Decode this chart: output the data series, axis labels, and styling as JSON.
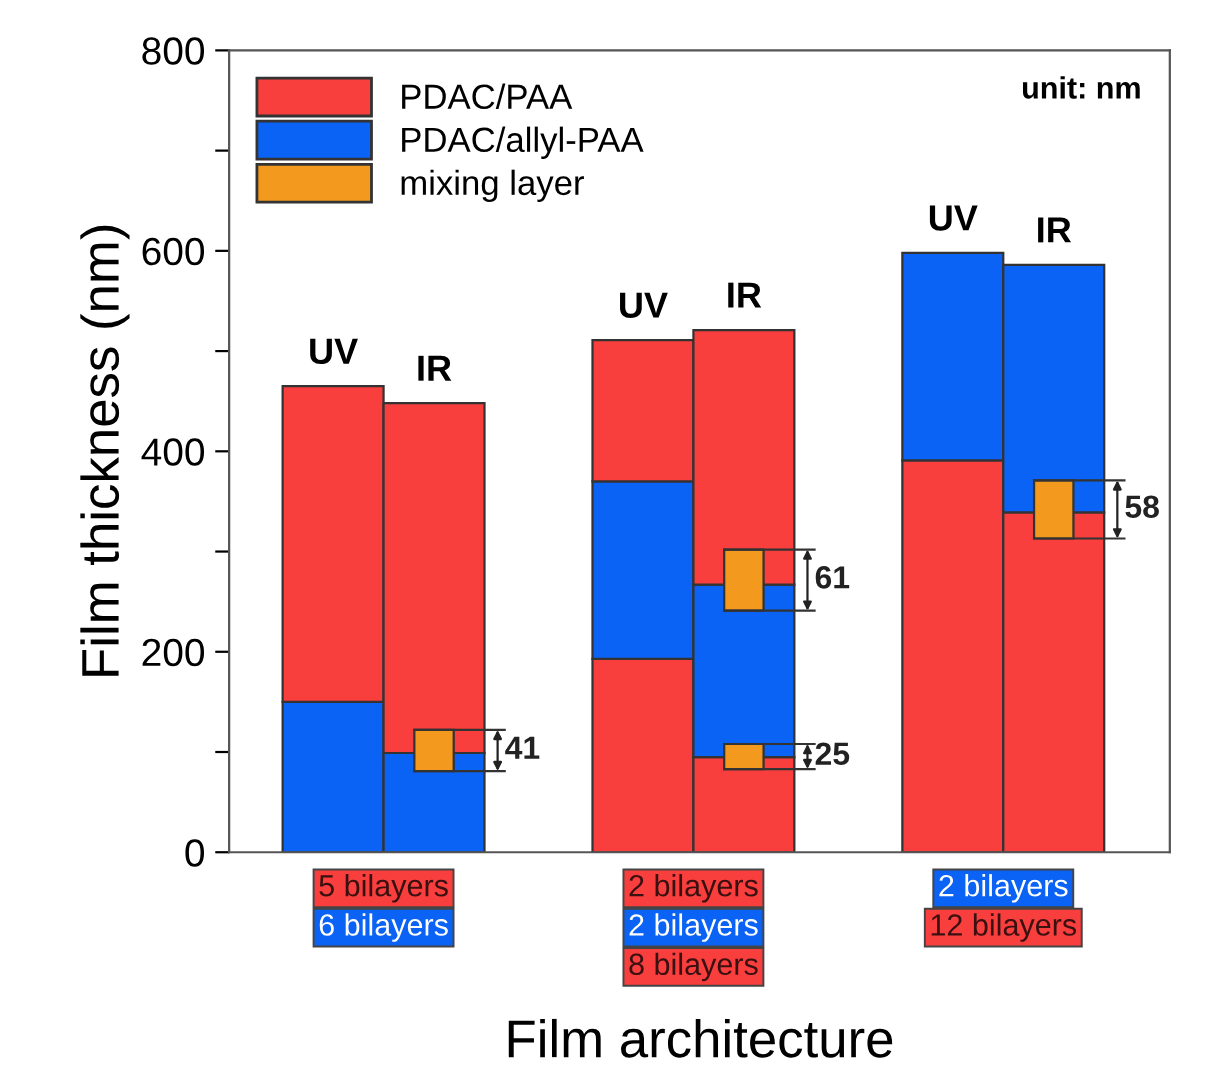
{
  "chart_data": {
    "type": "bar",
    "xlabel": "Film architecture",
    "ylabel": "Film thickness (nm)",
    "categories": [
      "UV",
      "IR",
      "UV",
      "IR",
      "UV",
      "IR"
    ],
    "series": [
      {
        "name": "PDAC/PAA",
        "color": "#f93e3e",
        "values": [
          null,
          null,
          193,
          95,
          391,
          339
        ],
        "base": [
          null,
          null,
          0,
          0,
          0,
          0
        ]
      },
      {
        "name": "PDAC/allyl-PAA",
        "color": "#0b63f5",
        "values": [
          150,
          99,
          177,
          172,
          207,
          247
        ],
        "base": [
          0,
          0,
          193,
          95,
          391,
          339
        ]
      },
      {
        "color": "#f93e3e",
        "values": [
          315,
          349,
          141,
          254,
          null,
          null
        ],
        "base": [
          150,
          99,
          370,
          267,
          null,
          null
        ]
      },
      {
        "name": "mixing layer",
        "color": "#f39a1e",
        "values": [
          null,
          41,
          null,
          61,
          null,
          58
        ],
        "base": [
          null,
          81,
          null,
          241,
          null,
          313
        ],
        "value_labels": [
          null,
          "41",
          null,
          "61",
          null,
          "58"
        ]
      },
      {
        "color": "#f39a1e",
        "values": [
          null,
          null,
          null,
          25,
          null,
          null
        ],
        "base": [
          null,
          null,
          null,
          83,
          null,
          null
        ],
        "value_labels": [
          null,
          null,
          null,
          "25",
          null,
          null
        ]
      }
    ],
    "ylim": [
      0,
      800
    ],
    "yticks": [
      0,
      {
        "value": 100,
        "label": null
      },
      200,
      {
        "value": 300,
        "label": null
      },
      400,
      {
        "value": 500,
        "label": null
      },
      600,
      {
        "value": 700,
        "label": null
      },
      800
    ],
    "tick_labels": "y",
    "grid": false,
    "legend": "top left",
    "annotations": [
      "unit: nm",
      "5 bilayers",
      "6 bilayers",
      "2 bilayers",
      "2 bilayers",
      "8 bilayers",
      "2 bilayers",
      "12 bilayers"
    ]
  }
}
